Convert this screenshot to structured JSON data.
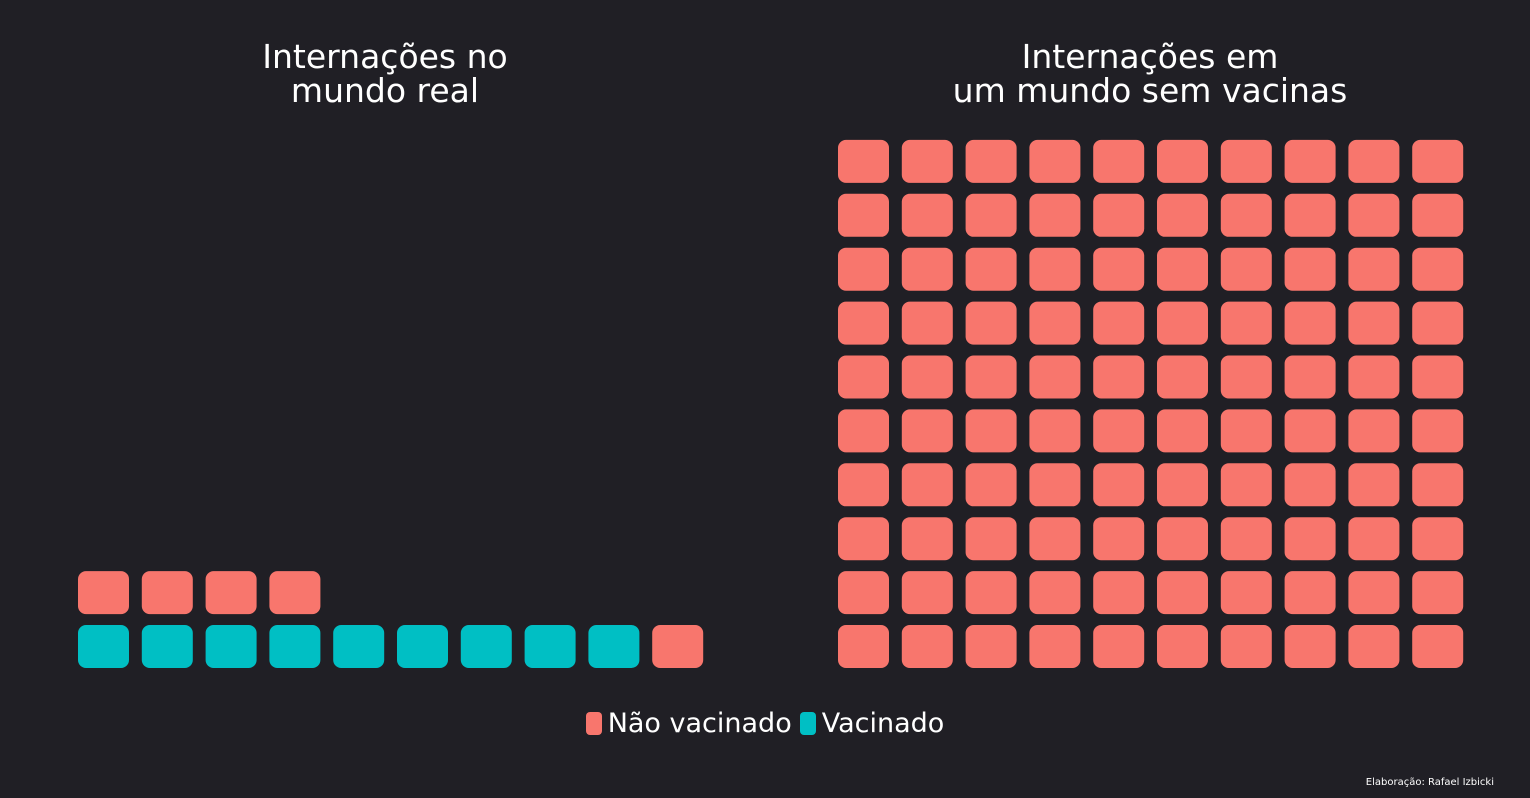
{
  "colors": {
    "background": "#201f25",
    "nao_vacinado": "#f8766d",
    "vacinado": "#00bfc4"
  },
  "chart_data": [
    {
      "type": "waffle",
      "title_lines": [
        "Internações no",
        "mundo real"
      ],
      "grid": {
        "columns": 10,
        "rows": 10
      },
      "fill_order": "bottom-to-top, left-to-right",
      "units": [
        {
          "category": "Vacinado",
          "count": 9
        },
        {
          "category": "Não vacinado",
          "count": 5
        }
      ]
    },
    {
      "type": "waffle",
      "title_lines": [
        "Internações em",
        "um mundo sem vacinas"
      ],
      "grid": {
        "columns": 10,
        "rows": 10
      },
      "fill_order": "bottom-to-top, left-to-right",
      "units": [
        {
          "category": "Não vacinado",
          "count": 100
        }
      ]
    }
  ],
  "legend": {
    "placement": "bottom-center",
    "items": [
      {
        "label": "Não vacinado",
        "color": "#f8766d"
      },
      {
        "label": "Vacinado",
        "color": "#00bfc4"
      }
    ]
  },
  "caption": "Elaboração: Rafael Izbicki"
}
